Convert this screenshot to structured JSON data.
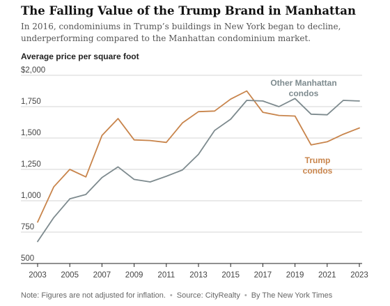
{
  "title": "The Falling Value of the Trump Brand in Manhattan",
  "subtitle": "In 2016, condominiums in Trump’s buildings in New York began to decline, underperforming compared to the Manhattan condominium market.",
  "footer": {
    "note": "Note: Figures are not adjusted for inflation.",
    "source": "Source: CityRealty",
    "credit": "By The New York Times",
    "separator": "•"
  },
  "colors": {
    "trump": "#c8844b",
    "other": "#7d8a8e",
    "grid": "#d4d4d4",
    "axis": "#222222",
    "tick_text": "#444444"
  },
  "chart_data": {
    "type": "line",
    "ylabel": "Average price per square foot",
    "xlabel": "",
    "x": [
      2003,
      2004,
      2005,
      2006,
      2007,
      2008,
      2009,
      2010,
      2011,
      2012,
      2013,
      2014,
      2015,
      2016,
      2017,
      2018,
      2019,
      2020,
      2021,
      2022,
      2023
    ],
    "xlim": [
      2003,
      2023
    ],
    "ylim": [
      500,
      2000
    ],
    "x_ticks": [
      2003,
      2005,
      2007,
      2009,
      2011,
      2013,
      2015,
      2017,
      2019,
      2021,
      2023
    ],
    "x_tick_labels": [
      "2003",
      "2005",
      "2007",
      "2009",
      "2011",
      "2013",
      "2015",
      "2017",
      "2019",
      "2021",
      "2023"
    ],
    "y_ticks": [
      500,
      750,
      1000,
      1250,
      1500,
      1750,
      2000
    ],
    "y_tick_labels": [
      "500",
      "750",
      "1,000",
      "1,250",
      "1,500",
      "1,750",
      "$2,000"
    ],
    "grid": true,
    "series": [
      {
        "name": "Trump condos",
        "label_lines": [
          "Trump",
          "condos"
        ],
        "color": "#c8844b",
        "values": [
          830,
          1110,
          1250,
          1190,
          1520,
          1655,
          1485,
          1480,
          1465,
          1620,
          1710,
          1715,
          1810,
          1875,
          1705,
          1680,
          1675,
          1445,
          1470,
          1530,
          1580
        ]
      },
      {
        "name": "Other Manhattan condos",
        "label_lines": [
          "Other Manhattan",
          "condos"
        ],
        "color": "#7d8a8e",
        "values": [
          675,
          865,
          1015,
          1050,
          1185,
          1270,
          1170,
          1150,
          1195,
          1245,
          1370,
          1560,
          1650,
          1800,
          1795,
          1750,
          1815,
          1690,
          1685,
          1800,
          1795
        ]
      }
    ]
  }
}
